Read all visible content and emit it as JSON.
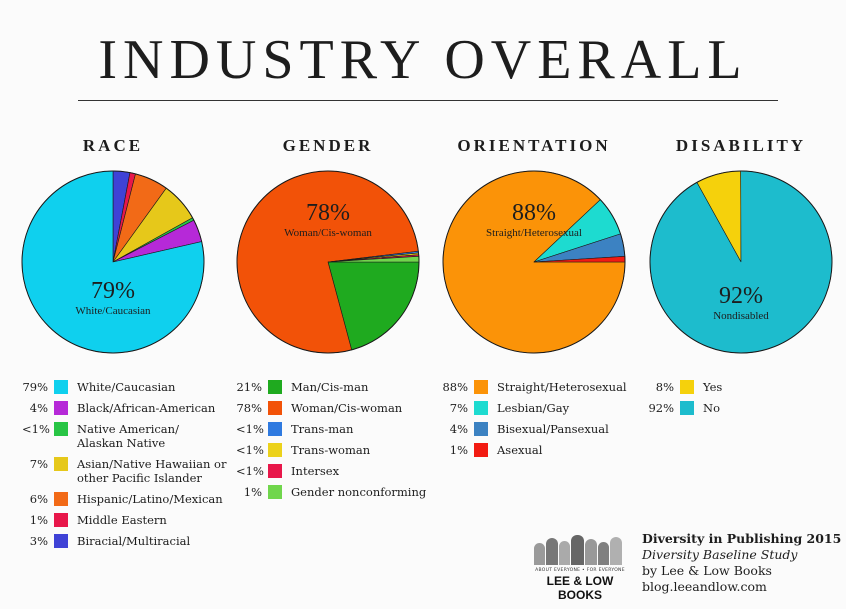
{
  "header": {
    "title": "INDUSTRY OVERALL"
  },
  "chart_data": [
    {
      "type": "pie",
      "title": "RACE",
      "callout": {
        "value": "79%",
        "label": "White/Caucasian"
      },
      "slices": [
        {
          "name": "White/Caucasian",
          "value": 79,
          "display": "79%",
          "color": "#0fd0ee"
        },
        {
          "name": "Black/African-American",
          "value": 4,
          "display": "4%",
          "color": "#b629d8"
        },
        {
          "name": "Native American/\nAlaskan Native",
          "value": 0.5,
          "display": "<1%",
          "color": "#28c545"
        },
        {
          "name": "Asian/Native Hawaiian or\nother Pacific Islander",
          "value": 7,
          "display": "7%",
          "color": "#e6c81a"
        },
        {
          "name": "Hispanic/Latino/Mexican",
          "value": 6,
          "display": "6%",
          "color": "#f26a17"
        },
        {
          "name": "Middle Eastern",
          "value": 1,
          "display": "1%",
          "color": "#e8174a"
        },
        {
          "name": "Biracial/Multiracial",
          "value": 3,
          "display": "3%",
          "color": "#3f42d6"
        }
      ]
    },
    {
      "type": "pie",
      "title": "GENDER",
      "callout": {
        "value": "78%",
        "label": "Woman/Cis-woman"
      },
      "slices": [
        {
          "name": "Man/Cis-man",
          "value": 21,
          "display": "21%",
          "color": "#1faa1f"
        },
        {
          "name": "Woman/Cis-woman",
          "value": 78,
          "display": "78%",
          "color": "#f25208"
        },
        {
          "name": "Trans-man",
          "value": 0.3,
          "display": "<1%",
          "color": "#2f7ae0"
        },
        {
          "name": "Trans-woman",
          "value": 0.3,
          "display": "<1%",
          "color": "#ecd21b"
        },
        {
          "name": "Intersex",
          "value": 0.3,
          "display": "<1%",
          "color": "#e8174a"
        },
        {
          "name": "Gender nonconforming",
          "value": 1,
          "display": "1%",
          "color": "#70d64c"
        }
      ]
    },
    {
      "type": "pie",
      "title": "ORIENTATION",
      "callout": {
        "value": "88%",
        "label": "Straight/Heterosexual"
      },
      "slices": [
        {
          "name": "Straight/Heterosexual",
          "value": 88,
          "display": "88%",
          "color": "#fb9308"
        },
        {
          "name": "Lesbian/Gay",
          "value": 7,
          "display": "7%",
          "color": "#1ddbd0"
        },
        {
          "name": "Bisexual/Pansexual",
          "value": 4,
          "display": "4%",
          "color": "#3c82c2"
        },
        {
          "name": "Asexual",
          "value": 1,
          "display": "1%",
          "color": "#f21b12"
        }
      ]
    },
    {
      "type": "pie",
      "title": "DISABILITY",
      "callout": {
        "value": "92%",
        "label": "Nondisabled"
      },
      "slices": [
        {
          "name": "Yes",
          "value": 8,
          "display": "8%",
          "color": "#f5d10c"
        },
        {
          "name": "No",
          "value": 92,
          "display": "92%",
          "color": "#1dbccd"
        }
      ]
    }
  ],
  "footer": {
    "logo_tagline": "ABOUT EVERYONE • FOR EVERYONE",
    "logo_name": "LEE & LOW BOOKS",
    "credit_title": "Diversity in Publishing 2015",
    "credit_subtitle": "Diversity Baseline Study",
    "credit_by": "by Lee & Low Books",
    "credit_url": "blog.leeandlow.com"
  }
}
